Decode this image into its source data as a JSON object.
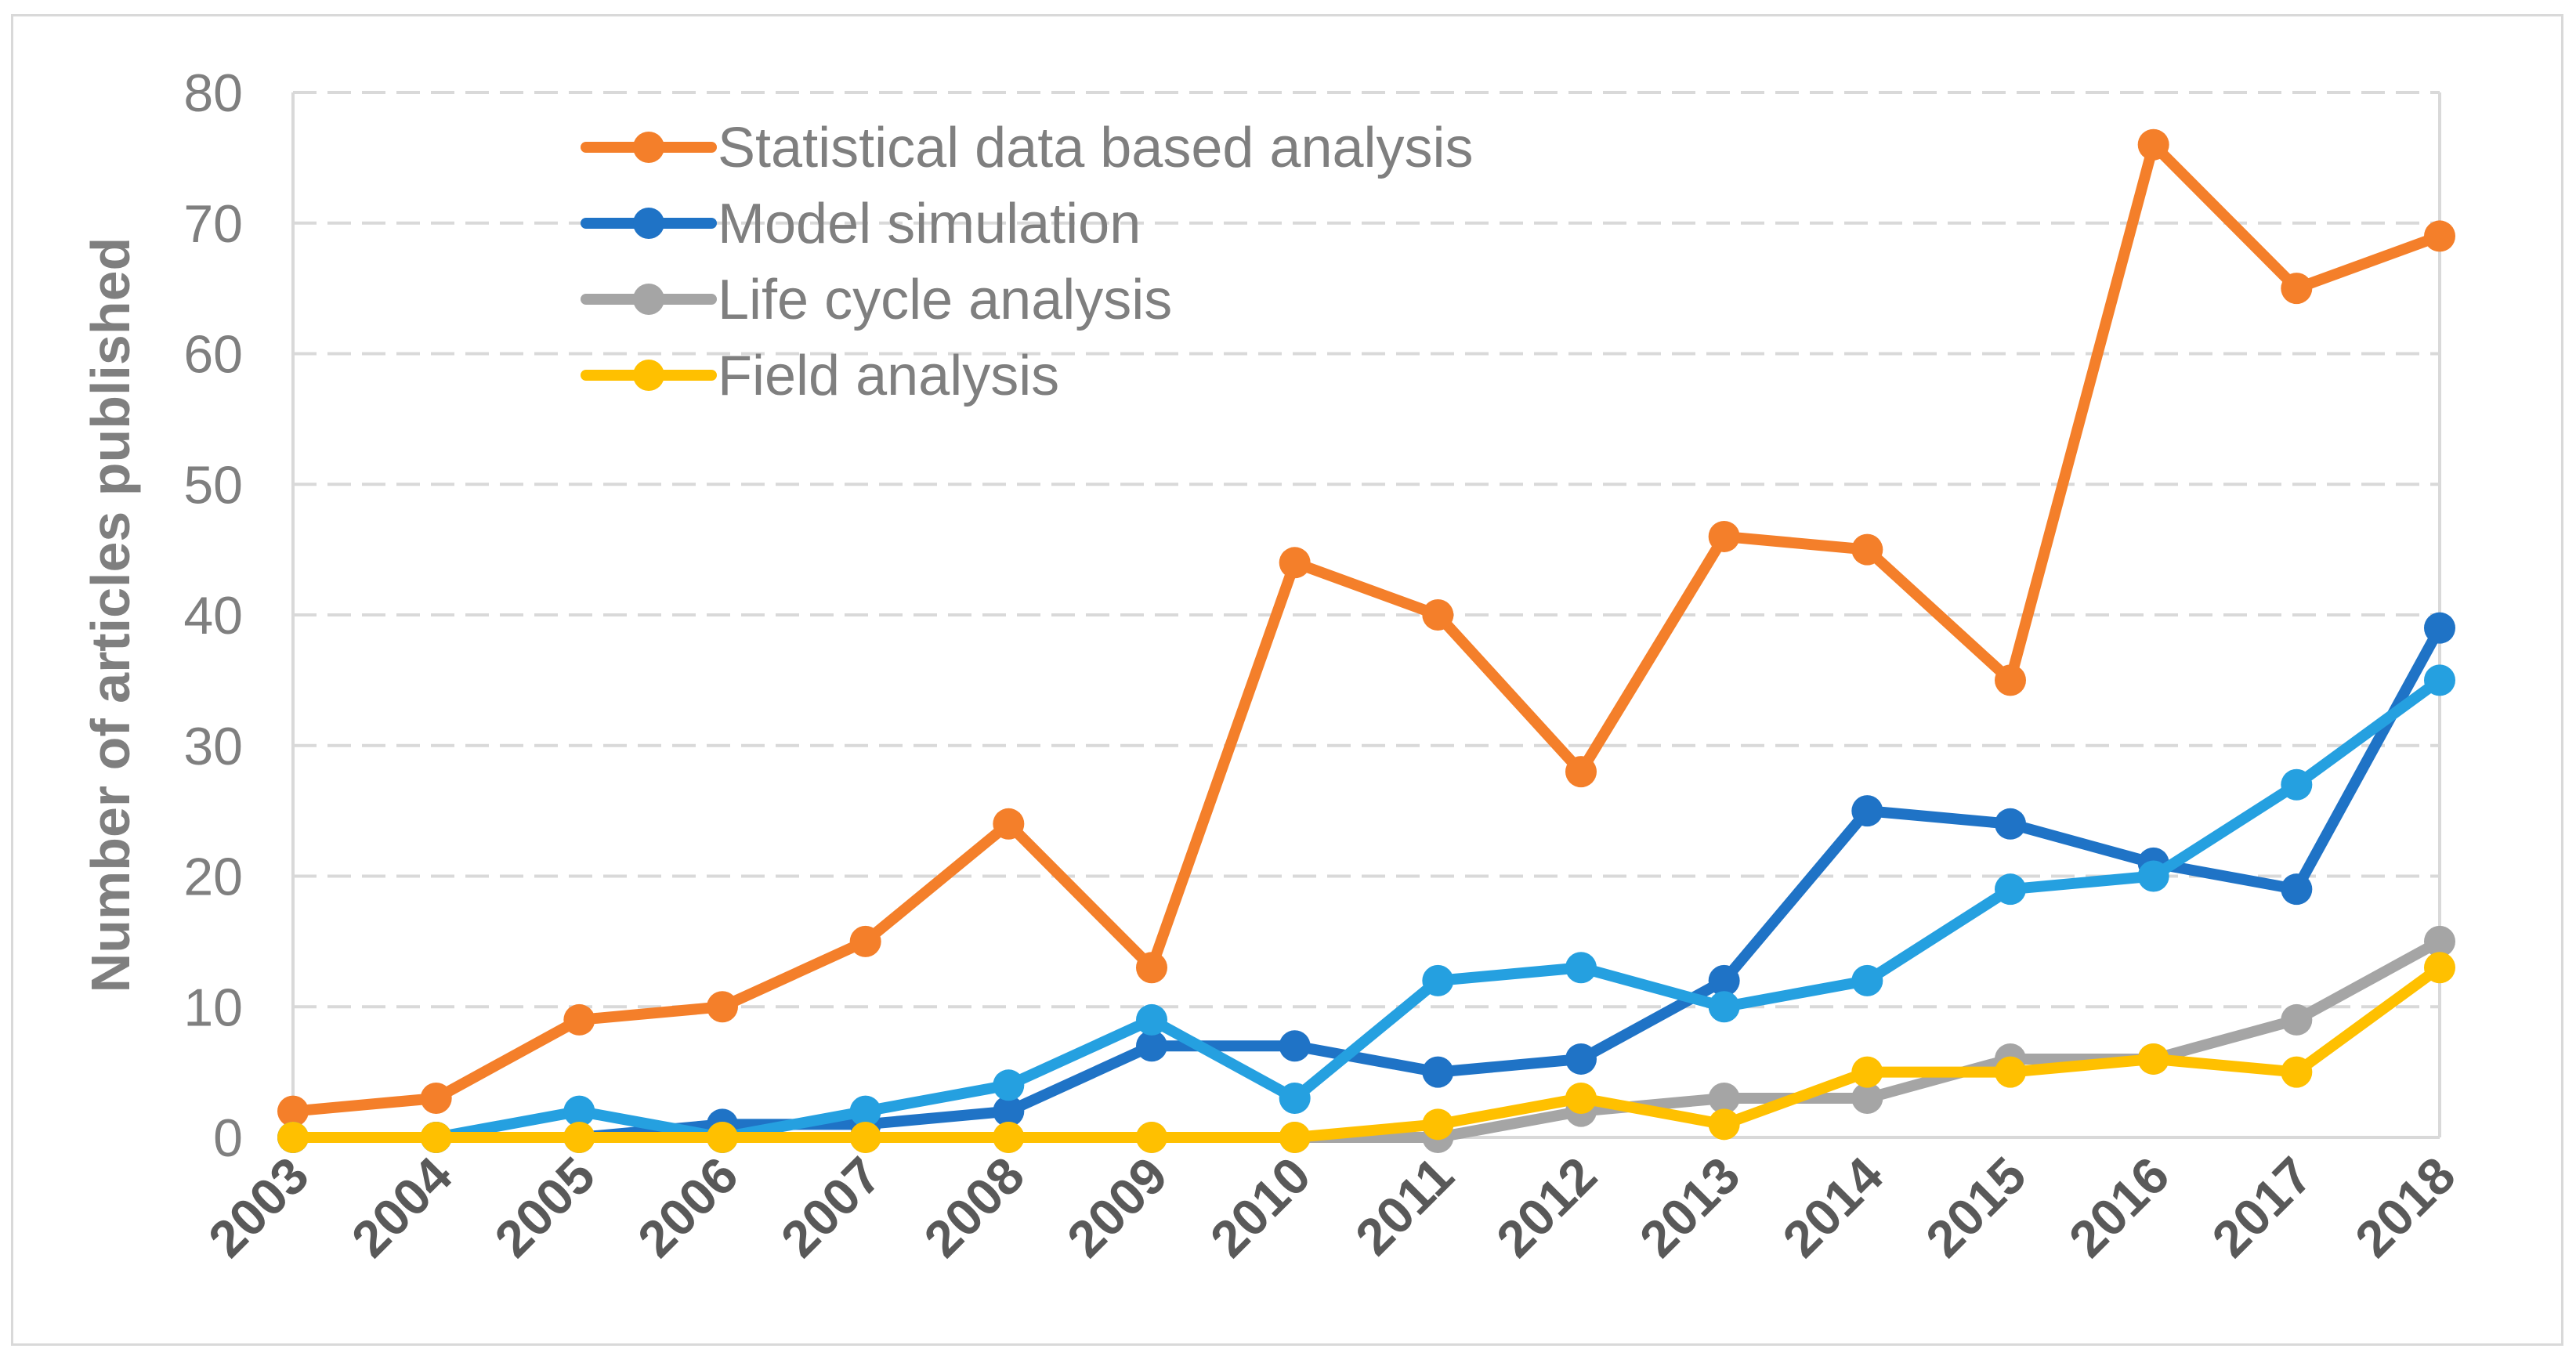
{
  "chart_data": {
    "type": "line",
    "title": "",
    "xlabel": "",
    "ylabel": "Number of articles published",
    "ylim": [
      0,
      80
    ],
    "yticks": [
      0,
      10,
      20,
      30,
      40,
      50,
      60,
      70,
      80
    ],
    "grid": "horizontal-dashed",
    "legend_position": "top-left",
    "categories": [
      "2003",
      "2004",
      "2005",
      "2006",
      "2007",
      "2008",
      "2009",
      "2010",
      "2011",
      "2012",
      "2013",
      "2014",
      "2015",
      "2016",
      "2017",
      "2018"
    ],
    "series": [
      {
        "name": "Statistical data based analysis",
        "color": "#f47f2a",
        "in_legend": true,
        "values": [
          2,
          3,
          9,
          10,
          15,
          24,
          13,
          44,
          40,
          28,
          46,
          45,
          35,
          76,
          65,
          69
        ]
      },
      {
        "name": "Model simulation",
        "color": "#1f73c6",
        "in_legend": true,
        "values": [
          0,
          0,
          0,
          1,
          1,
          2,
          7,
          7,
          5,
          6,
          12,
          25,
          24,
          21,
          19,
          39
        ]
      },
      {
        "name": "Life cycle analysis",
        "color": "#a5a5a5",
        "in_legend": true,
        "values": [
          0,
          0,
          0,
          0,
          0,
          0,
          0,
          0,
          0,
          2,
          3,
          3,
          6,
          6,
          9,
          15
        ]
      },
      {
        "name": "",
        "color": "#25a0e0",
        "in_legend": false,
        "values": [
          0,
          0,
          2,
          0,
          2,
          4,
          9,
          3,
          12,
          13,
          10,
          12,
          19,
          20,
          27,
          35
        ]
      },
      {
        "name": "Field analysis",
        "color": "#ffc000",
        "in_legend": true,
        "values": [
          0,
          0,
          0,
          0,
          0,
          0,
          0,
          0,
          1,
          3,
          1,
          5,
          5,
          6,
          5,
          13
        ]
      }
    ]
  }
}
